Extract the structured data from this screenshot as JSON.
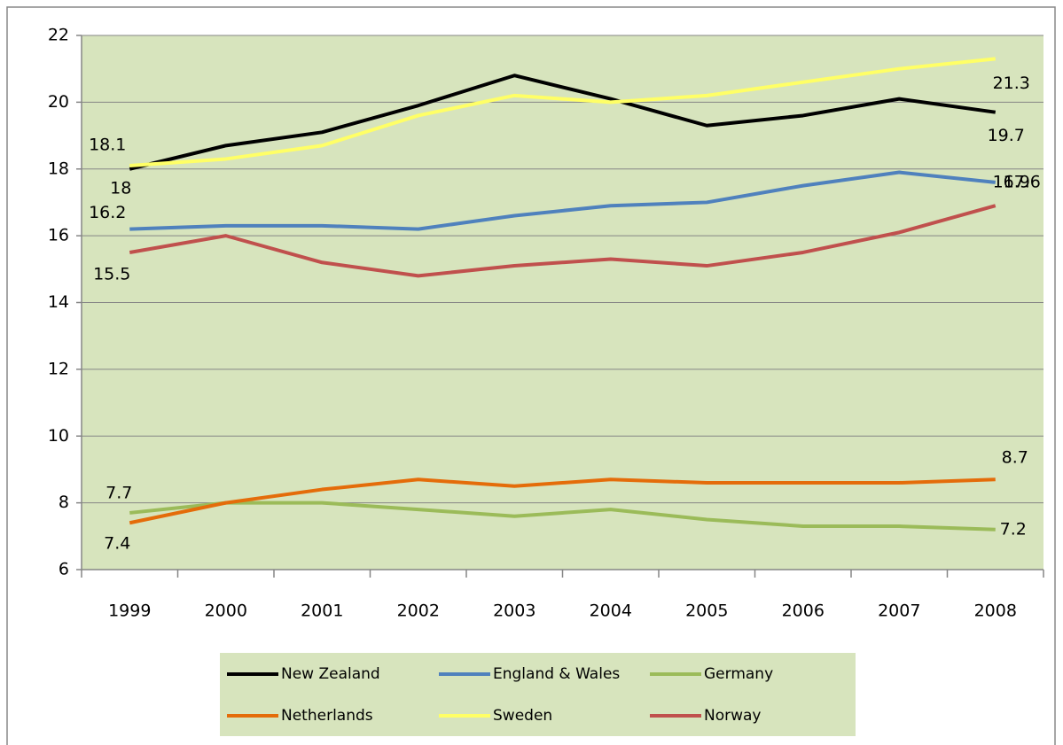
{
  "chart_data": {
    "type": "line",
    "categories": [
      "1999",
      "2000",
      "2001",
      "2002",
      "2003",
      "2004",
      "2005",
      "2006",
      "2007",
      "2008"
    ],
    "ylim": [
      6,
      22
    ],
    "yticks": [
      6,
      8,
      10,
      12,
      14,
      16,
      18,
      20,
      22
    ],
    "grid": true,
    "legend": "bottom",
    "series": [
      {
        "name": "New Zealand",
        "color": "#000000",
        "values": [
          18,
          18.7,
          19.1,
          19.9,
          20.8,
          20.1,
          19.3,
          19.6,
          20.1,
          19.7
        ]
      },
      {
        "name": "England & Wales",
        "color": "#4f81bd",
        "values": [
          16.2,
          16.3,
          16.3,
          16.2,
          16.6,
          16.9,
          17.0,
          17.5,
          17.9,
          17.6
        ]
      },
      {
        "name": "Germany",
        "color": "#9bbb59",
        "values": [
          7.7,
          8.0,
          8.0,
          7.8,
          7.6,
          7.8,
          7.5,
          7.3,
          7.3,
          7.2
        ]
      },
      {
        "name": "Netherlands",
        "color": "#e46c0a",
        "values": [
          7.4,
          8.0,
          8.4,
          8.7,
          8.5,
          8.7,
          8.6,
          8.6,
          8.6,
          8.7
        ]
      },
      {
        "name": "Sweden",
        "color": "#ffff66",
        "values": [
          18.1,
          18.3,
          18.7,
          19.6,
          20.2,
          20.0,
          20.2,
          20.6,
          21.0,
          21.3
        ]
      },
      {
        "name": "Norway",
        "color": "#c0504d",
        "values": [
          15.5,
          16.0,
          15.2,
          14.8,
          15.1,
          15.3,
          15.1,
          15.5,
          16.1,
          16.9
        ]
      }
    ]
  }
}
